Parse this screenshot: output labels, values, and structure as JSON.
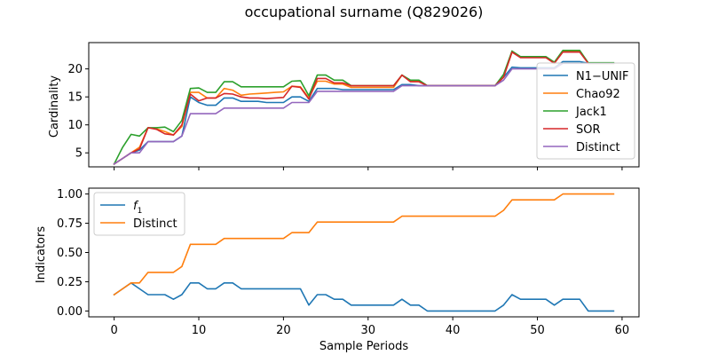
{
  "title": "occupational surname (Q829026)",
  "colors": {
    "N1-UNIF": "#1f77b4",
    "Chao92": "#ff7f0e",
    "Jack1": "#2ca02c",
    "SOR": "#d62728",
    "Distinct": "#9467bd",
    "f1": "#1f77b4",
    "DistinctIndicator": "#ff7f0e"
  },
  "chart_data": [
    {
      "type": "line",
      "title": "",
      "xlabel": "",
      "ylabel": "Cardinality",
      "xlim": [
        -3,
        62
      ],
      "ylim": [
        2.5,
        24.7
      ],
      "xticks": [
        0,
        10,
        20,
        30,
        40,
        50,
        60
      ],
      "show_xtick_labels": false,
      "yticks": [
        5,
        10,
        15,
        20
      ],
      "legend_position": "right",
      "x": [
        0,
        1,
        2,
        3,
        4,
        5,
        6,
        7,
        8,
        9,
        10,
        11,
        12,
        13,
        14,
        15,
        16,
        17,
        18,
        19,
        20,
        21,
        22,
        23,
        24,
        25,
        26,
        27,
        28,
        29,
        30,
        31,
        32,
        33,
        34,
        35,
        36,
        37,
        38,
        39,
        40,
        41,
        42,
        43,
        44,
        45,
        46,
        47,
        48,
        49,
        50,
        51,
        52,
        53,
        54,
        55,
        56,
        57,
        58,
        59
      ],
      "series": [
        {
          "name": "N1−UNIF",
          "color": "#1f77b4",
          "values": [
            3.0,
            4.0,
            5.0,
            5.5,
            7.0,
            7.0,
            7.0,
            7.0,
            8.0,
            15.0,
            14.0,
            13.5,
            13.5,
            14.8,
            14.8,
            14.2,
            14.2,
            14.2,
            14.0,
            14.0,
            14.0,
            15.0,
            15.0,
            14.2,
            16.5,
            16.5,
            16.5,
            16.3,
            16.3,
            16.3,
            16.3,
            16.3,
            16.3,
            16.3,
            17.2,
            17.2,
            17.0,
            17.0,
            17.0,
            17.0,
            17.0,
            17.0,
            17.0,
            17.0,
            17.0,
            17.0,
            18.5,
            20.3,
            20.2,
            20.2,
            20.2,
            20.2,
            20.2,
            21.3,
            21.3,
            21.3,
            21.0,
            21.0,
            21.0,
            21.0
          ]
        },
        {
          "name": "Chao92",
          "color": "#ff7f0e",
          "values": [
            3.0,
            4.0,
            5.0,
            6.0,
            9.5,
            9.3,
            8.8,
            8.2,
            9.7,
            15.8,
            15.8,
            14.8,
            14.8,
            16.5,
            16.2,
            15.3,
            15.5,
            15.6,
            15.7,
            15.8,
            15.9,
            16.9,
            16.8,
            14.8,
            17.8,
            17.8,
            17.3,
            17.3,
            16.7,
            16.7,
            16.7,
            16.7,
            16.7,
            16.7,
            18.9,
            17.8,
            17.8,
            17.0,
            17.0,
            17.0,
            17.0,
            17.0,
            17.0,
            17.0,
            17.0,
            17.0,
            18.6,
            23.0,
            22.1,
            22.1,
            22.1,
            22.1,
            21.0,
            23.2,
            23.2,
            23.2,
            21.0,
            21.0,
            21.0,
            21.0
          ]
        },
        {
          "name": "Jack1",
          "color": "#2ca02c",
          "values": [
            3.0,
            6.0,
            8.3,
            8.0,
            9.5,
            9.5,
            9.6,
            8.8,
            10.8,
            16.5,
            16.6,
            15.8,
            15.8,
            17.7,
            17.7,
            16.8,
            16.8,
            16.8,
            16.8,
            16.8,
            16.8,
            17.8,
            17.9,
            15.2,
            18.9,
            18.9,
            18.0,
            18.0,
            17.0,
            17.0,
            17.0,
            17.0,
            17.0,
            17.0,
            18.9,
            18.0,
            18.0,
            17.0,
            17.0,
            17.0,
            17.0,
            17.0,
            17.0,
            17.0,
            17.0,
            17.0,
            19.0,
            23.2,
            22.2,
            22.2,
            22.2,
            22.2,
            21.2,
            23.3,
            23.3,
            23.3,
            21.1,
            21.1,
            21.1,
            21.1
          ]
        },
        {
          "name": "SOR",
          "color": "#d62728",
          "values": [
            3.0,
            4.0,
            5.0,
            5.7,
            9.5,
            9.2,
            8.4,
            8.2,
            10.0,
            15.5,
            14.3,
            14.8,
            14.8,
            15.6,
            15.5,
            15.0,
            14.8,
            14.8,
            14.7,
            14.8,
            14.9,
            16.9,
            16.7,
            14.6,
            18.3,
            18.3,
            17.5,
            17.5,
            17.0,
            17.0,
            17.0,
            17.0,
            17.0,
            17.0,
            18.9,
            17.7,
            17.7,
            17.0,
            17.0,
            17.0,
            17.0,
            17.0,
            17.0,
            17.0,
            17.0,
            17.0,
            18.5,
            23.0,
            22.0,
            22.0,
            22.0,
            22.0,
            21.0,
            23.0,
            23.0,
            23.0,
            21.0,
            21.0,
            21.0,
            21.0
          ]
        },
        {
          "name": "Distinct",
          "color": "#9467bd",
          "values": [
            3,
            4,
            5,
            5,
            7,
            7,
            7,
            7,
            8,
            12,
            12,
            12,
            12,
            13,
            13,
            13,
            13,
            13,
            13,
            13,
            13,
            14,
            14,
            14,
            16,
            16,
            16,
            16,
            16,
            16,
            16,
            16,
            16,
            16,
            17,
            17,
            17,
            17,
            17,
            17,
            17,
            17,
            17,
            17,
            17,
            17,
            18,
            20,
            20,
            20,
            20,
            20,
            20,
            21,
            21,
            21,
            21,
            21,
            21,
            21
          ]
        }
      ]
    },
    {
      "type": "line",
      "title": "",
      "xlabel": "Sample Periods",
      "ylabel": "Indicators",
      "xlim": [
        -3,
        62
      ],
      "ylim": [
        -0.05,
        1.05
      ],
      "xticks": [
        0,
        10,
        20,
        30,
        40,
        50,
        60
      ],
      "yticks": [
        0.0,
        0.25,
        0.5,
        0.75,
        1.0
      ],
      "ytick_labels": [
        "0.00",
        "0.25",
        "0.50",
        "0.75",
        "1.00"
      ],
      "legend_position": "upper left",
      "x": [
        0,
        1,
        2,
        3,
        4,
        5,
        6,
        7,
        8,
        9,
        10,
        11,
        12,
        13,
        14,
        15,
        16,
        17,
        18,
        19,
        20,
        21,
        22,
        23,
        24,
        25,
        26,
        27,
        28,
        29,
        30,
        31,
        32,
        33,
        34,
        35,
        36,
        37,
        38,
        39,
        40,
        41,
        42,
        43,
        44,
        45,
        46,
        47,
        48,
        49,
        50,
        51,
        52,
        53,
        54,
        55,
        56,
        57,
        58,
        59
      ],
      "series": [
        {
          "name": "f1",
          "color": "#1f77b4",
          "values": [
            0.14,
            0.19,
            0.24,
            0.19,
            0.14,
            0.14,
            0.14,
            0.1,
            0.14,
            0.24,
            0.24,
            0.19,
            0.19,
            0.24,
            0.24,
            0.19,
            0.19,
            0.19,
            0.19,
            0.19,
            0.19,
            0.19,
            0.19,
            0.05,
            0.14,
            0.14,
            0.1,
            0.1,
            0.05,
            0.05,
            0.05,
            0.05,
            0.05,
            0.05,
            0.1,
            0.05,
            0.05,
            0.0,
            0.0,
            0.0,
            0.0,
            0.0,
            0.0,
            0.0,
            0.0,
            0.0,
            0.05,
            0.14,
            0.1,
            0.1,
            0.1,
            0.1,
            0.05,
            0.1,
            0.1,
            0.1,
            0.0,
            0.0,
            0.0,
            0.0
          ]
        },
        {
          "name": "Distinct",
          "color": "#ff7f0e",
          "values": [
            0.14,
            0.19,
            0.24,
            0.24,
            0.33,
            0.33,
            0.33,
            0.33,
            0.38,
            0.57,
            0.57,
            0.57,
            0.57,
            0.62,
            0.62,
            0.62,
            0.62,
            0.62,
            0.62,
            0.62,
            0.62,
            0.67,
            0.67,
            0.67,
            0.76,
            0.76,
            0.76,
            0.76,
            0.76,
            0.76,
            0.76,
            0.76,
            0.76,
            0.76,
            0.81,
            0.81,
            0.81,
            0.81,
            0.81,
            0.81,
            0.81,
            0.81,
            0.81,
            0.81,
            0.81,
            0.81,
            0.86,
            0.95,
            0.95,
            0.95,
            0.95,
            0.95,
            0.95,
            1.0,
            1.0,
            1.0,
            1.0,
            1.0,
            1.0,
            1.0
          ]
        }
      ]
    }
  ]
}
